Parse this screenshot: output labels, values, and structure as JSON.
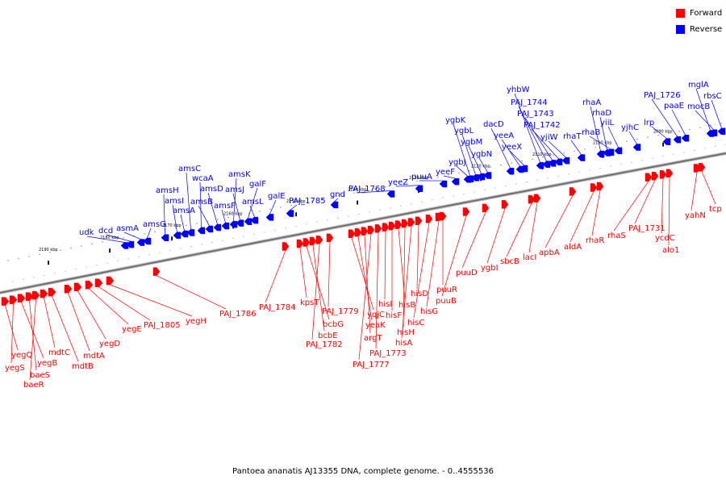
{
  "legend": {
    "forward_label": "Forward",
    "reverse_label": "Reverse",
    "forward_color": "#ff0000",
    "reverse_color": "#0000ff"
  },
  "caption": "Pantoea ananatis AJ13355 DNA, complete genome. - 0..4555536",
  "scale_labels": [
    "2190 kbp",
    "2180 kbp",
    "2170 kbp",
    "2160 kbp",
    "2150 kbp",
    "2140 kbp",
    "2130 kbp",
    "2120 kbp",
    "2110 kbp",
    "2100 kbp",
    "2090 kbp"
  ],
  "reverse_genes": [
    "udk",
    "dcd",
    "asmA",
    "amsG",
    "amsH",
    "amsI",
    "amsA",
    "amsC",
    "wcaA",
    "amsB",
    "amsD",
    "amsF",
    "amsK",
    "amsJ",
    "galF",
    "amsL",
    "galE",
    "PAJ_1785",
    "gnd",
    "PAJ_1768",
    "yeeZ",
    "puuA",
    "yeeF",
    "ygbJ",
    "ygbK",
    "ygbL",
    "ygbM",
    "ygbN",
    "dacD",
    "yeeA",
    "yeeX",
    "yhbW",
    "PAJ_1744",
    "PAJ_1743",
    "PAJ_1742",
    "yjiW",
    "rhaT",
    "rhaA",
    "rhaD",
    "rhaB",
    "yiiL",
    "yjhC",
    "lrp",
    "PAJ_1726",
    "paaE",
    "mglA",
    "mocB",
    "rbsC"
  ],
  "forward_genes": [
    "yegQ",
    "yegS",
    "yegB",
    "baeS",
    "baeR",
    "mdtC",
    "mdtB",
    "mdtA",
    "yegD",
    "yegE",
    "PAJ_1805",
    "yegH",
    "PAJ_1786",
    "PAJ_1784",
    "kpsT",
    "bcbG",
    "bcbE",
    "PAJ_1782",
    "PAJ_1779",
    "yqjC",
    "yeaK",
    "argT",
    "PAJ_1777",
    "PAJ_1773",
    "hisI",
    "hisF",
    "hisB",
    "hisH",
    "hisA",
    "hisD",
    "hisC",
    "hisG",
    "puuR",
    "puuB",
    "puuD",
    "ygbI",
    "sbcB",
    "lacI",
    "apbA",
    "aldA",
    "rhaR",
    "rhaS",
    "PAJ_1731",
    "ycdC",
    "alo1",
    "yahN",
    "tcp"
  ]
}
